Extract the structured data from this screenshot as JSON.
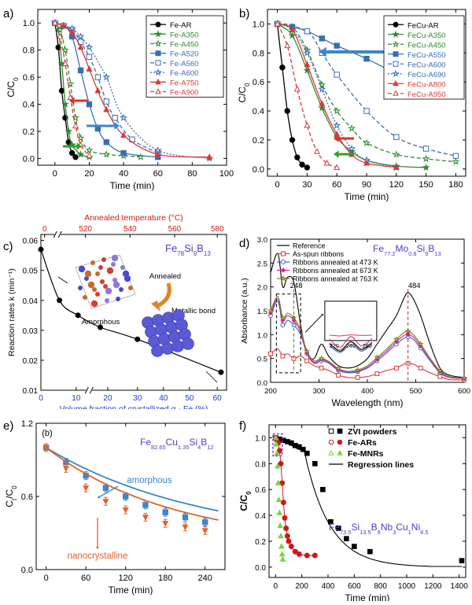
{
  "chart_data": [
    {
      "panel": "a)",
      "type": "line",
      "xlabel": "Time (min)",
      "ylabel": "C/C0",
      "xlim": [
        -10,
        100
      ],
      "ylim": [
        -0.05,
        1.1
      ],
      "xticks": [
        "0",
        "20",
        "40",
        "60",
        "80",
        "100"
      ],
      "yticks": [
        "0.0",
        "0.2",
        "0.4",
        "0.6",
        "0.8",
        "1.0"
      ],
      "legend_position": "top-right",
      "series": [
        {
          "name": "Fe-AR",
          "color": "#000000",
          "marker": "circle-filled",
          "dash": "solid",
          "x": [
            0,
            2,
            4,
            6,
            8,
            10,
            12
          ],
          "y": [
            1.0,
            0.82,
            0.5,
            0.3,
            0.12,
            0.04,
            0.01
          ]
        },
        {
          "name": "Fe-A350",
          "color": "#2e8b2e",
          "marker": "star-filled",
          "dash": "solid",
          "x": [
            0,
            2,
            4,
            6,
            8,
            10,
            15,
            20
          ],
          "y": [
            1.0,
            0.95,
            0.7,
            0.4,
            0.2,
            0.1,
            0.03,
            0.01
          ]
        },
        {
          "name": "Fe-A450",
          "color": "#2e8b2e",
          "marker": "star-open",
          "dash": "dash",
          "x": [
            0,
            3,
            6,
            9,
            12,
            15,
            20,
            30,
            40,
            50
          ],
          "y": [
            1.0,
            0.95,
            0.8,
            0.55,
            0.3,
            0.15,
            0.06,
            0.03,
            0.02,
            0.01
          ]
        },
        {
          "name": "Fe-A520",
          "color": "#3a6db5",
          "marker": "square-filled",
          "dash": "solid",
          "x": [
            0,
            5,
            10,
            15,
            20,
            25,
            30,
            40,
            60
          ],
          "y": [
            1.0,
            0.98,
            0.9,
            0.65,
            0.4,
            0.22,
            0.12,
            0.04,
            0.01
          ]
        },
        {
          "name": "Fe-A560",
          "color": "#3a6db5",
          "marker": "square-open",
          "dash": "dash",
          "x": [
            0,
            5,
            10,
            15,
            20,
            25,
            30,
            35,
            45,
            60
          ],
          "y": [
            1.0,
            0.98,
            0.95,
            0.86,
            0.75,
            0.6,
            0.42,
            0.3,
            0.14,
            0.04
          ]
        },
        {
          "name": "Fe-A600",
          "color": "#3a6db5",
          "marker": "star-open",
          "dash": "dot",
          "x": [
            0,
            5,
            10,
            15,
            20,
            30,
            40,
            60,
            90
          ],
          "y": [
            1.0,
            0.98,
            0.96,
            0.9,
            0.82,
            0.6,
            0.3,
            0.06,
            0.0
          ]
        },
        {
          "name": "Fe-A750",
          "color": "#d63a3a",
          "marker": "triangle-filled",
          "dash": "solid",
          "x": [
            0,
            5,
            10,
            15,
            20,
            25,
            30,
            40,
            60,
            90
          ],
          "y": [
            1.0,
            0.98,
            0.93,
            0.82,
            0.66,
            0.5,
            0.36,
            0.17,
            0.03,
            0.01
          ]
        },
        {
          "name": "Fe-A900",
          "color": "#d63a3a",
          "marker": "triangle-open",
          "dash": "dash",
          "x": [
            0,
            3,
            6,
            9,
            12,
            15,
            20
          ],
          "y": [
            1.0,
            0.9,
            0.7,
            0.45,
            0.24,
            0.1,
            0.02
          ]
        }
      ]
    },
    {
      "panel": "b)",
      "type": "line",
      "xlabel": "Time (min)",
      "ylabel": "C/C0",
      "xlim": [
        -10,
        190
      ],
      "ylim": [
        -0.05,
        1.1
      ],
      "xticks": [
        "0",
        "30",
        "60",
        "90",
        "120",
        "150",
        "180"
      ],
      "yticks": [
        "0.0",
        "0.2",
        "0.4",
        "0.6",
        "0.8",
        "1.0"
      ],
      "legend_position": "top-right",
      "series": [
        {
          "name": "FeCu-AR",
          "color": "#000000",
          "marker": "circle-filled",
          "dash": "solid",
          "x": [
            0,
            5,
            10,
            15,
            20,
            25,
            30
          ],
          "y": [
            1.0,
            0.7,
            0.4,
            0.2,
            0.08,
            0.03,
            0.01
          ]
        },
        {
          "name": "FeCu-A350",
          "color": "#2e8b2e",
          "marker": "star-filled",
          "dash": "solid",
          "x": [
            0,
            15,
            30,
            45,
            60,
            75,
            90,
            120,
            150
          ],
          "y": [
            1.0,
            0.92,
            0.68,
            0.42,
            0.22,
            0.12,
            0.06,
            0.02,
            0.01
          ]
        },
        {
          "name": "FeCu-A450",
          "color": "#2e8b2e",
          "marker": "star-open",
          "dash": "dash",
          "x": [
            0,
            15,
            30,
            45,
            60,
            75,
            90,
            120,
            150,
            180
          ],
          "y": [
            1.0,
            0.98,
            0.82,
            0.58,
            0.4,
            0.28,
            0.18,
            0.1,
            0.07,
            0.05
          ]
        },
        {
          "name": "FeCu-A550",
          "color": "#3a6db5",
          "marker": "square-filled",
          "dash": "solid",
          "x": [
            0,
            15,
            30,
            45,
            60,
            90,
            120,
            150,
            180
          ],
          "y": [
            1.0,
            0.98,
            0.95,
            0.9,
            0.85,
            0.76,
            0.66,
            0.6,
            0.56
          ]
        },
        {
          "name": "FeCu-A600",
          "color": "#3a6db5",
          "marker": "square-open",
          "dash": "dash",
          "x": [
            0,
            30,
            45,
            60,
            90,
            120,
            150,
            180
          ],
          "y": [
            1.0,
            0.95,
            0.8,
            0.65,
            0.4,
            0.22,
            0.14,
            0.09
          ]
        },
        {
          "name": "FeCu-A690",
          "color": "#3a6db5",
          "marker": "star-open",
          "dash": "dot",
          "x": [
            0,
            15,
            30,
            45,
            60,
            75,
            90,
            120
          ],
          "y": [
            1.0,
            0.96,
            0.8,
            0.55,
            0.3,
            0.14,
            0.06,
            0.01
          ]
        },
        {
          "name": "FeCu-A800",
          "color": "#d63a3a",
          "marker": "triangle-filled",
          "dash": "solid",
          "x": [
            0,
            15,
            30,
            45,
            60,
            75,
            90,
            120
          ],
          "y": [
            1.0,
            0.96,
            0.72,
            0.45,
            0.24,
            0.1,
            0.04,
            0.01
          ]
        },
        {
          "name": "FeCu-A950",
          "color": "#d63a3a",
          "marker": "triangle-open",
          "dash": "dash",
          "x": [
            0,
            10,
            20,
            30,
            40,
            50,
            60
          ],
          "y": [
            1.0,
            0.85,
            0.55,
            0.3,
            0.12,
            0.04,
            0.01
          ]
        }
      ]
    },
    {
      "panel": "c)",
      "type": "line",
      "title_formula": {
        "parts": [
          "Fe",
          "78",
          "Si",
          "9",
          "B",
          "13"
        ]
      },
      "xlabel": "Volume fraction of crystallized α - Fe (%)",
      "x2label": "Annealed temperature (°C)",
      "ylabel": "Reaction rates k (min⁻¹)",
      "xticks": [
        "0",
        "10",
        "20",
        "30",
        "40",
        "50",
        "60"
      ],
      "x2ticks": [
        "0",
        "520",
        "540",
        "560",
        "580"
      ],
      "yticks": [
        "0.01",
        "0.02",
        "0.03",
        "0.04",
        "0.05",
        "0.06"
      ],
      "ylim": [
        0.01,
        0.062
      ],
      "annotations": [
        "Amorphous",
        "Annealed",
        "Metallic bond"
      ],
      "series": [
        {
          "x_fraction": [
            0,
            0.1,
            0.2,
            0.32,
            0.52,
            0.97
          ],
          "y": [
            0.057,
            0.04,
            0.035,
            0.031,
            0.027,
            0.016
          ]
        }
      ]
    },
    {
      "panel": "d)",
      "type": "line",
      "title_formula": {
        "parts": [
          "Fe",
          "77.2",
          "Mo",
          "0.8",
          "Si",
          "9",
          "B",
          "13"
        ]
      },
      "xlabel": "Wavelength (nm)",
      "ylabel": "Absorbance (a.u.)",
      "xlim": [
        200,
        600
      ],
      "ylim": [
        0,
        3.0
      ],
      "xticks": [
        "200",
        "300",
        "400",
        "500",
        "600"
      ],
      "yticks": [
        "0.0",
        "0.5",
        "1.0",
        "1.5",
        "2.0",
        "2.5",
        "3.0"
      ],
      "annotations": [
        "248",
        "484"
      ],
      "inset_xticks": [
        "220",
        "240",
        "260"
      ],
      "series": [
        {
          "name": "Reference",
          "color": "#000000",
          "marker": "none"
        },
        {
          "name": "As-spun ribbons",
          "color": "#d63a3a",
          "marker": "square-open"
        },
        {
          "name": "Ribbons annealed at 473 K",
          "color": "#3a5fd6",
          "marker": "circle-open"
        },
        {
          "name": "Ribbons annealed at 673 K",
          "color": "#e0208c",
          "marker": "diamond-filled"
        },
        {
          "name": "Ribbons annealed at 763 K",
          "color": "#7a7a1a",
          "marker": "star-open"
        }
      ]
    },
    {
      "panel": "e)",
      "type": "line",
      "inner_label": "(b)",
      "title_formula": {
        "parts": [
          "Fe",
          "82.65",
          "Cu",
          "1.35",
          "Si",
          "4",
          "B",
          "12"
        ]
      },
      "xlabel": "Time (min)",
      "ylabel": "Ct/C0",
      "xlim": [
        -15,
        270
      ],
      "ylim": [
        0,
        1.2
      ],
      "xticks": [
        "0",
        "60",
        "120",
        "180",
        "240"
      ],
      "yticks": [
        "0.0",
        "0.6",
        "1.2"
      ],
      "annotations": [
        "amorphous",
        "nanocrystalline"
      ],
      "series": [
        {
          "name": "amorphous",
          "color": "#3a86c8",
          "marker": "square-filled",
          "x": [
            0,
            30,
            60,
            90,
            120,
            150,
            180,
            210,
            240
          ],
          "y": [
            1.0,
            0.88,
            0.77,
            0.67,
            0.6,
            0.53,
            0.47,
            0.43,
            0.39
          ]
        },
        {
          "name": "nanocrystalline",
          "color": "#e0642a",
          "marker": "triangle-down-filled",
          "x": [
            0,
            30,
            60,
            90,
            120,
            150,
            180,
            210,
            240
          ],
          "y": [
            1.0,
            0.83,
            0.67,
            0.56,
            0.49,
            0.43,
            0.38,
            0.35,
            0.32
          ]
        }
      ]
    },
    {
      "panel": "f)",
      "type": "scatter",
      "title_formula": {
        "parts": [
          "Fe",
          "73.5",
          "Si",
          "13.5",
          "B",
          "9",
          "Nb",
          "3",
          "Cu",
          "1",
          "Ni",
          "8.5"
        ]
      },
      "xlabel": "Time (min)",
      "ylabel": "C/C0",
      "xlim": [
        -50,
        1450
      ],
      "ylim": [
        -0.08,
        1.1
      ],
      "xticks": [
        "0",
        "200",
        "400",
        "600",
        "800",
        "1000",
        "1200",
        "1400"
      ],
      "yticks": [
        "0.0",
        "0.2",
        "0.4",
        "0.6",
        "0.8",
        "1.0"
      ],
      "legend_position": "top-center",
      "series": [
        {
          "name": "ZVI powders",
          "color": "#000000",
          "marker": "square-filled",
          "x": [
            0,
            30,
            60,
            90,
            120,
            150,
            180,
            210,
            240,
            300,
            360,
            420,
            480,
            540,
            600,
            720,
            1420
          ],
          "y": [
            1.0,
            0.99,
            0.98,
            0.97,
            0.96,
            0.94,
            0.93,
            0.91,
            0.88,
            0.8,
            0.6,
            0.35,
            0.3,
            0.22,
            0.16,
            0.12,
            0.05
          ]
        },
        {
          "name": "Fe-ARs",
          "color": "#cc1a1a",
          "marker": "circle-filled",
          "x": [
            0,
            10,
            20,
            30,
            40,
            50,
            60,
            70,
            80,
            90,
            100,
            120,
            150,
            180,
            240,
            300
          ],
          "y": [
            1.0,
            0.98,
            0.96,
            0.9,
            0.8,
            0.65,
            0.5,
            0.38,
            0.3,
            0.24,
            0.2,
            0.16,
            0.12,
            0.1,
            0.09,
            0.09
          ]
        },
        {
          "name": "Fe-MNRs",
          "color": "#7dd23a",
          "marker": "triangle-filled",
          "x": [
            0,
            5,
            10,
            15,
            20,
            25,
            30,
            35,
            40,
            45,
            50,
            55
          ],
          "y": [
            1.0,
            0.95,
            0.88,
            0.78,
            0.65,
            0.52,
            0.42,
            0.32,
            0.24,
            0.16,
            0.1,
            0.06
          ]
        },
        {
          "name": "Regression lines",
          "color": "#000000",
          "marker": "none"
        }
      ]
    }
  ]
}
